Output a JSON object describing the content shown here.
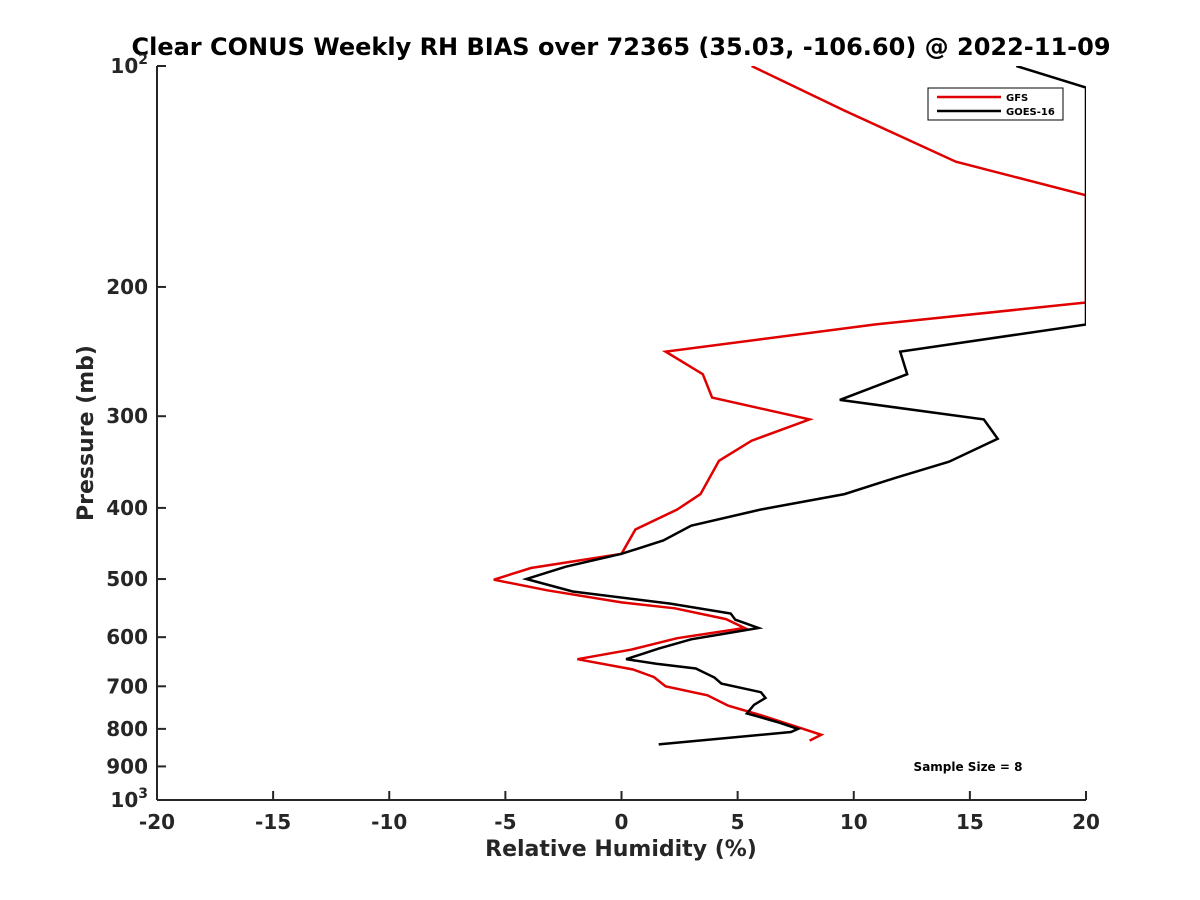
{
  "chart_data": {
    "type": "line",
    "title": "Clear CONUS Weekly RH BIAS over 72365 (35.03, -106.60) @ 2022-11-09",
    "xlabel": "Relative Humidity (%)",
    "ylabel": "Pressure (mb)",
    "xlim": [
      -20,
      20
    ],
    "ylim": [
      100,
      1000
    ],
    "yscale": "log",
    "y_reversed": true,
    "grid": false,
    "xticks": [
      -20,
      -15,
      -10,
      -5,
      0,
      5,
      10,
      15,
      20
    ],
    "xtick_labels": [
      "-20",
      "-15",
      "-10",
      "-5",
      "0",
      "5",
      "10",
      "15",
      "20"
    ],
    "yticks": [
      {
        "value": 100,
        "base": "10",
        "exp": "2"
      },
      {
        "value": 200,
        "label": "200"
      },
      {
        "value": 300,
        "label": "300"
      },
      {
        "value": 400,
        "label": "400"
      },
      {
        "value": 500,
        "label": "500"
      },
      {
        "value": 600,
        "label": "600"
      },
      {
        "value": 700,
        "label": "700"
      },
      {
        "value": 800,
        "label": "800"
      },
      {
        "value": 900,
        "label": "900"
      },
      {
        "value": 1000,
        "base": "10",
        "exp": "3"
      }
    ],
    "legend": {
      "position": "top-right",
      "entries": [
        "GFS",
        "GOES-16"
      ]
    },
    "annotation": "Sample Size = 8",
    "series": [
      {
        "name": "GFS",
        "color": "#e00000",
        "points": [
          [
            5.6,
            100
          ],
          [
            9.6,
            115
          ],
          [
            14.4,
            135
          ],
          [
            20,
            150
          ],
          [
            20,
            210
          ],
          [
            10.9,
            225
          ],
          [
            1.9,
            245
          ],
          [
            3.5,
            263
          ],
          [
            3.9,
            283
          ],
          [
            8.1,
            303
          ],
          [
            5.6,
            324
          ],
          [
            4.2,
            345
          ],
          [
            3.4,
            383
          ],
          [
            2.4,
            402
          ],
          [
            0.6,
            428
          ],
          [
            0.0,
            462
          ],
          [
            -3.9,
            483
          ],
          [
            -5.5,
            501
          ],
          [
            -3.2,
            518
          ],
          [
            0.0,
            538
          ],
          [
            2.3,
            548
          ],
          [
            4.5,
            567
          ],
          [
            5.3,
            583
          ],
          [
            2.4,
            602
          ],
          [
            0.4,
            624
          ],
          [
            -1.9,
            643
          ],
          [
            0.5,
            664
          ],
          [
            1.4,
            680
          ],
          [
            1.9,
            700
          ],
          [
            3.7,
            720
          ],
          [
            4.6,
            744
          ],
          [
            6.1,
            768
          ],
          [
            7.4,
            792
          ],
          [
            8.6,
            815
          ],
          [
            8.1,
            830
          ]
        ]
      },
      {
        "name": "GOES-16",
        "color": "#000000",
        "points": [
          [
            17.0,
            100
          ],
          [
            20,
            107
          ],
          [
            20,
            225
          ],
          [
            12.0,
            245
          ],
          [
            12.3,
            263
          ],
          [
            9.4,
            285
          ],
          [
            15.6,
            303
          ],
          [
            16.2,
            322
          ],
          [
            14.1,
            346
          ],
          [
            11.8,
            364
          ],
          [
            9.6,
            383
          ],
          [
            6.0,
            402
          ],
          [
            3.0,
            423
          ],
          [
            1.8,
            443
          ],
          [
            0.0,
            462
          ],
          [
            -2.4,
            481
          ],
          [
            -4.1,
            500
          ],
          [
            -2.1,
            520
          ],
          [
            2.1,
            540
          ],
          [
            4.7,
            557
          ],
          [
            4.9,
            568
          ],
          [
            5.9,
            583
          ],
          [
            3.0,
            604
          ],
          [
            1.6,
            622
          ],
          [
            0.2,
            643
          ],
          [
            1.5,
            652
          ],
          [
            3.2,
            662
          ],
          [
            4.0,
            681
          ],
          [
            4.3,
            694
          ],
          [
            6.0,
            713
          ],
          [
            6.2,
            726
          ],
          [
            5.7,
            742
          ],
          [
            5.4,
            762
          ],
          [
            6.7,
            783
          ],
          [
            7.6,
            800
          ],
          [
            7.3,
            808
          ],
          [
            1.6,
            840
          ]
        ]
      }
    ]
  }
}
